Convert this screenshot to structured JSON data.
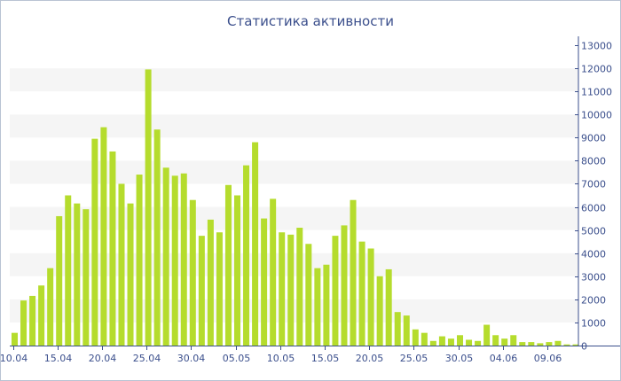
{
  "chart_data": {
    "type": "bar",
    "title": "Статистика активности",
    "xlabel": "",
    "ylabel": "",
    "ylim": [
      0,
      13000
    ],
    "yticks": [
      0,
      1000,
      2000,
      3000,
      4000,
      5000,
      6000,
      7000,
      8000,
      9000,
      10000,
      11000,
      12000,
      13000
    ],
    "ytick_labels": [
      "0",
      "1000",
      "2000",
      "3000",
      "4000",
      "5000",
      "6000",
      "7000",
      "8000",
      "9000",
      "10000",
      "11000",
      "12000",
      "13000"
    ],
    "y_axis_side": "right",
    "grid": "alternating horizontal bands",
    "legend": "none",
    "bar_color": "#b5dc2d",
    "band_color": "#f5f5f5",
    "axis_color": "#3b4f8c",
    "xtick_labels": [
      "10.04",
      "15.04",
      "20.04",
      "25.04",
      "30.04",
      "05.05",
      "10.05",
      "15.05",
      "20.05",
      "25.05",
      "30.05",
      "04.06",
      "09.06"
    ],
    "xtick_indices": [
      0,
      5,
      10,
      15,
      20,
      25,
      30,
      35,
      40,
      45,
      50,
      55,
      60
    ],
    "categories": [
      "10.04",
      "11.04",
      "12.04",
      "13.04",
      "14.04",
      "15.04",
      "16.04",
      "17.04",
      "18.04",
      "19.04",
      "20.04",
      "21.04",
      "22.04",
      "23.04",
      "24.04",
      "25.04",
      "26.04",
      "27.04",
      "28.04",
      "29.04",
      "30.04",
      "01.05",
      "02.05",
      "03.05",
      "04.05",
      "05.05",
      "06.05",
      "07.05",
      "08.05",
      "09.05",
      "10.05",
      "11.05",
      "12.05",
      "13.05",
      "14.05",
      "15.05",
      "16.05",
      "17.05",
      "18.05",
      "19.05",
      "20.05",
      "21.05",
      "22.05",
      "23.05",
      "24.05",
      "25.05",
      "26.05",
      "27.05",
      "28.05",
      "29.05",
      "30.05",
      "31.05",
      "01.06",
      "02.06",
      "03.06",
      "04.06",
      "05.06",
      "06.06",
      "07.06",
      "08.06",
      "09.06",
      "10.06",
      "11.06",
      "12.06"
    ],
    "values": [
      550,
      1950,
      2150,
      2600,
      3350,
      5600,
      6500,
      6150,
      5900,
      8950,
      9450,
      8400,
      7000,
      6150,
      7400,
      11950,
      9350,
      7700,
      7350,
      7450,
      6300,
      4750,
      5450,
      4900,
      6950,
      6500,
      7800,
      8800,
      5500,
      6350,
      4900,
      4800,
      5100,
      4400,
      3350,
      3500,
      4750,
      5200,
      6300,
      4500,
      4200,
      3000,
      3300,
      1450,
      1300,
      700,
      550,
      200,
      400,
      300,
      450,
      250,
      200,
      900,
      450,
      300,
      450,
      150,
      150,
      100,
      150,
      200,
      50,
      50
    ]
  }
}
